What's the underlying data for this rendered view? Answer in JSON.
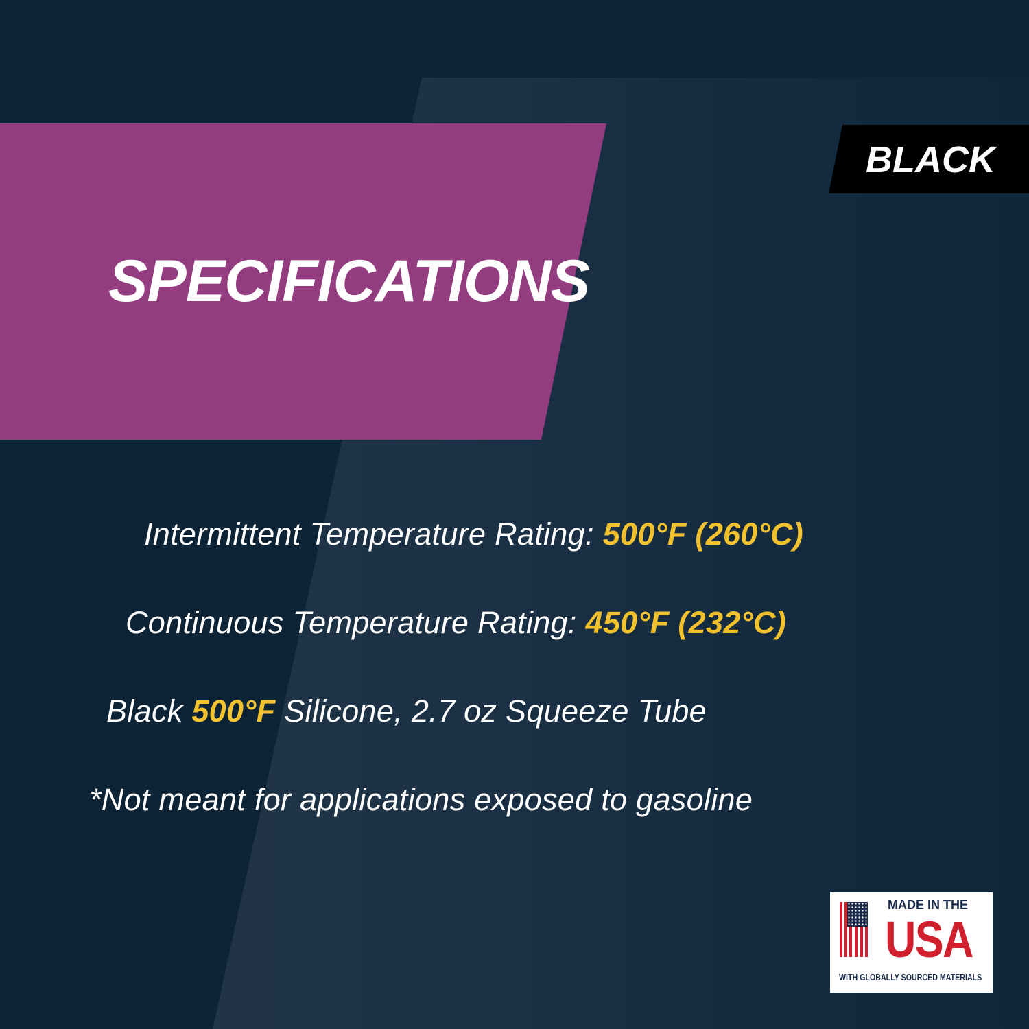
{
  "colors": {
    "background": "#0d2436",
    "accent_magenta": "#943c80",
    "highlight": "#f2c12e",
    "tag_bg": "#000000"
  },
  "title": "SPECIFICATIONS",
  "color_tag": "BLACK",
  "specs": [
    {
      "label": "Intermittent Temperature Rating: ",
      "value": "500°F (260°C)"
    },
    {
      "label": "Continuous Temperature Rating: ",
      "value": "450°F (232°C)"
    },
    {
      "pre": "Black ",
      "value": "500°F",
      "post": " Silicone, 2.7 oz Squeeze Tube"
    },
    {
      "label": "*Not meant for applications exposed to gasoline"
    }
  ],
  "badge": {
    "line1": "MADE IN THE",
    "line2": "USA",
    "line3": "WITH GLOBALLY SOURCED MATERIALS",
    "icon": "us-flag-icon"
  }
}
